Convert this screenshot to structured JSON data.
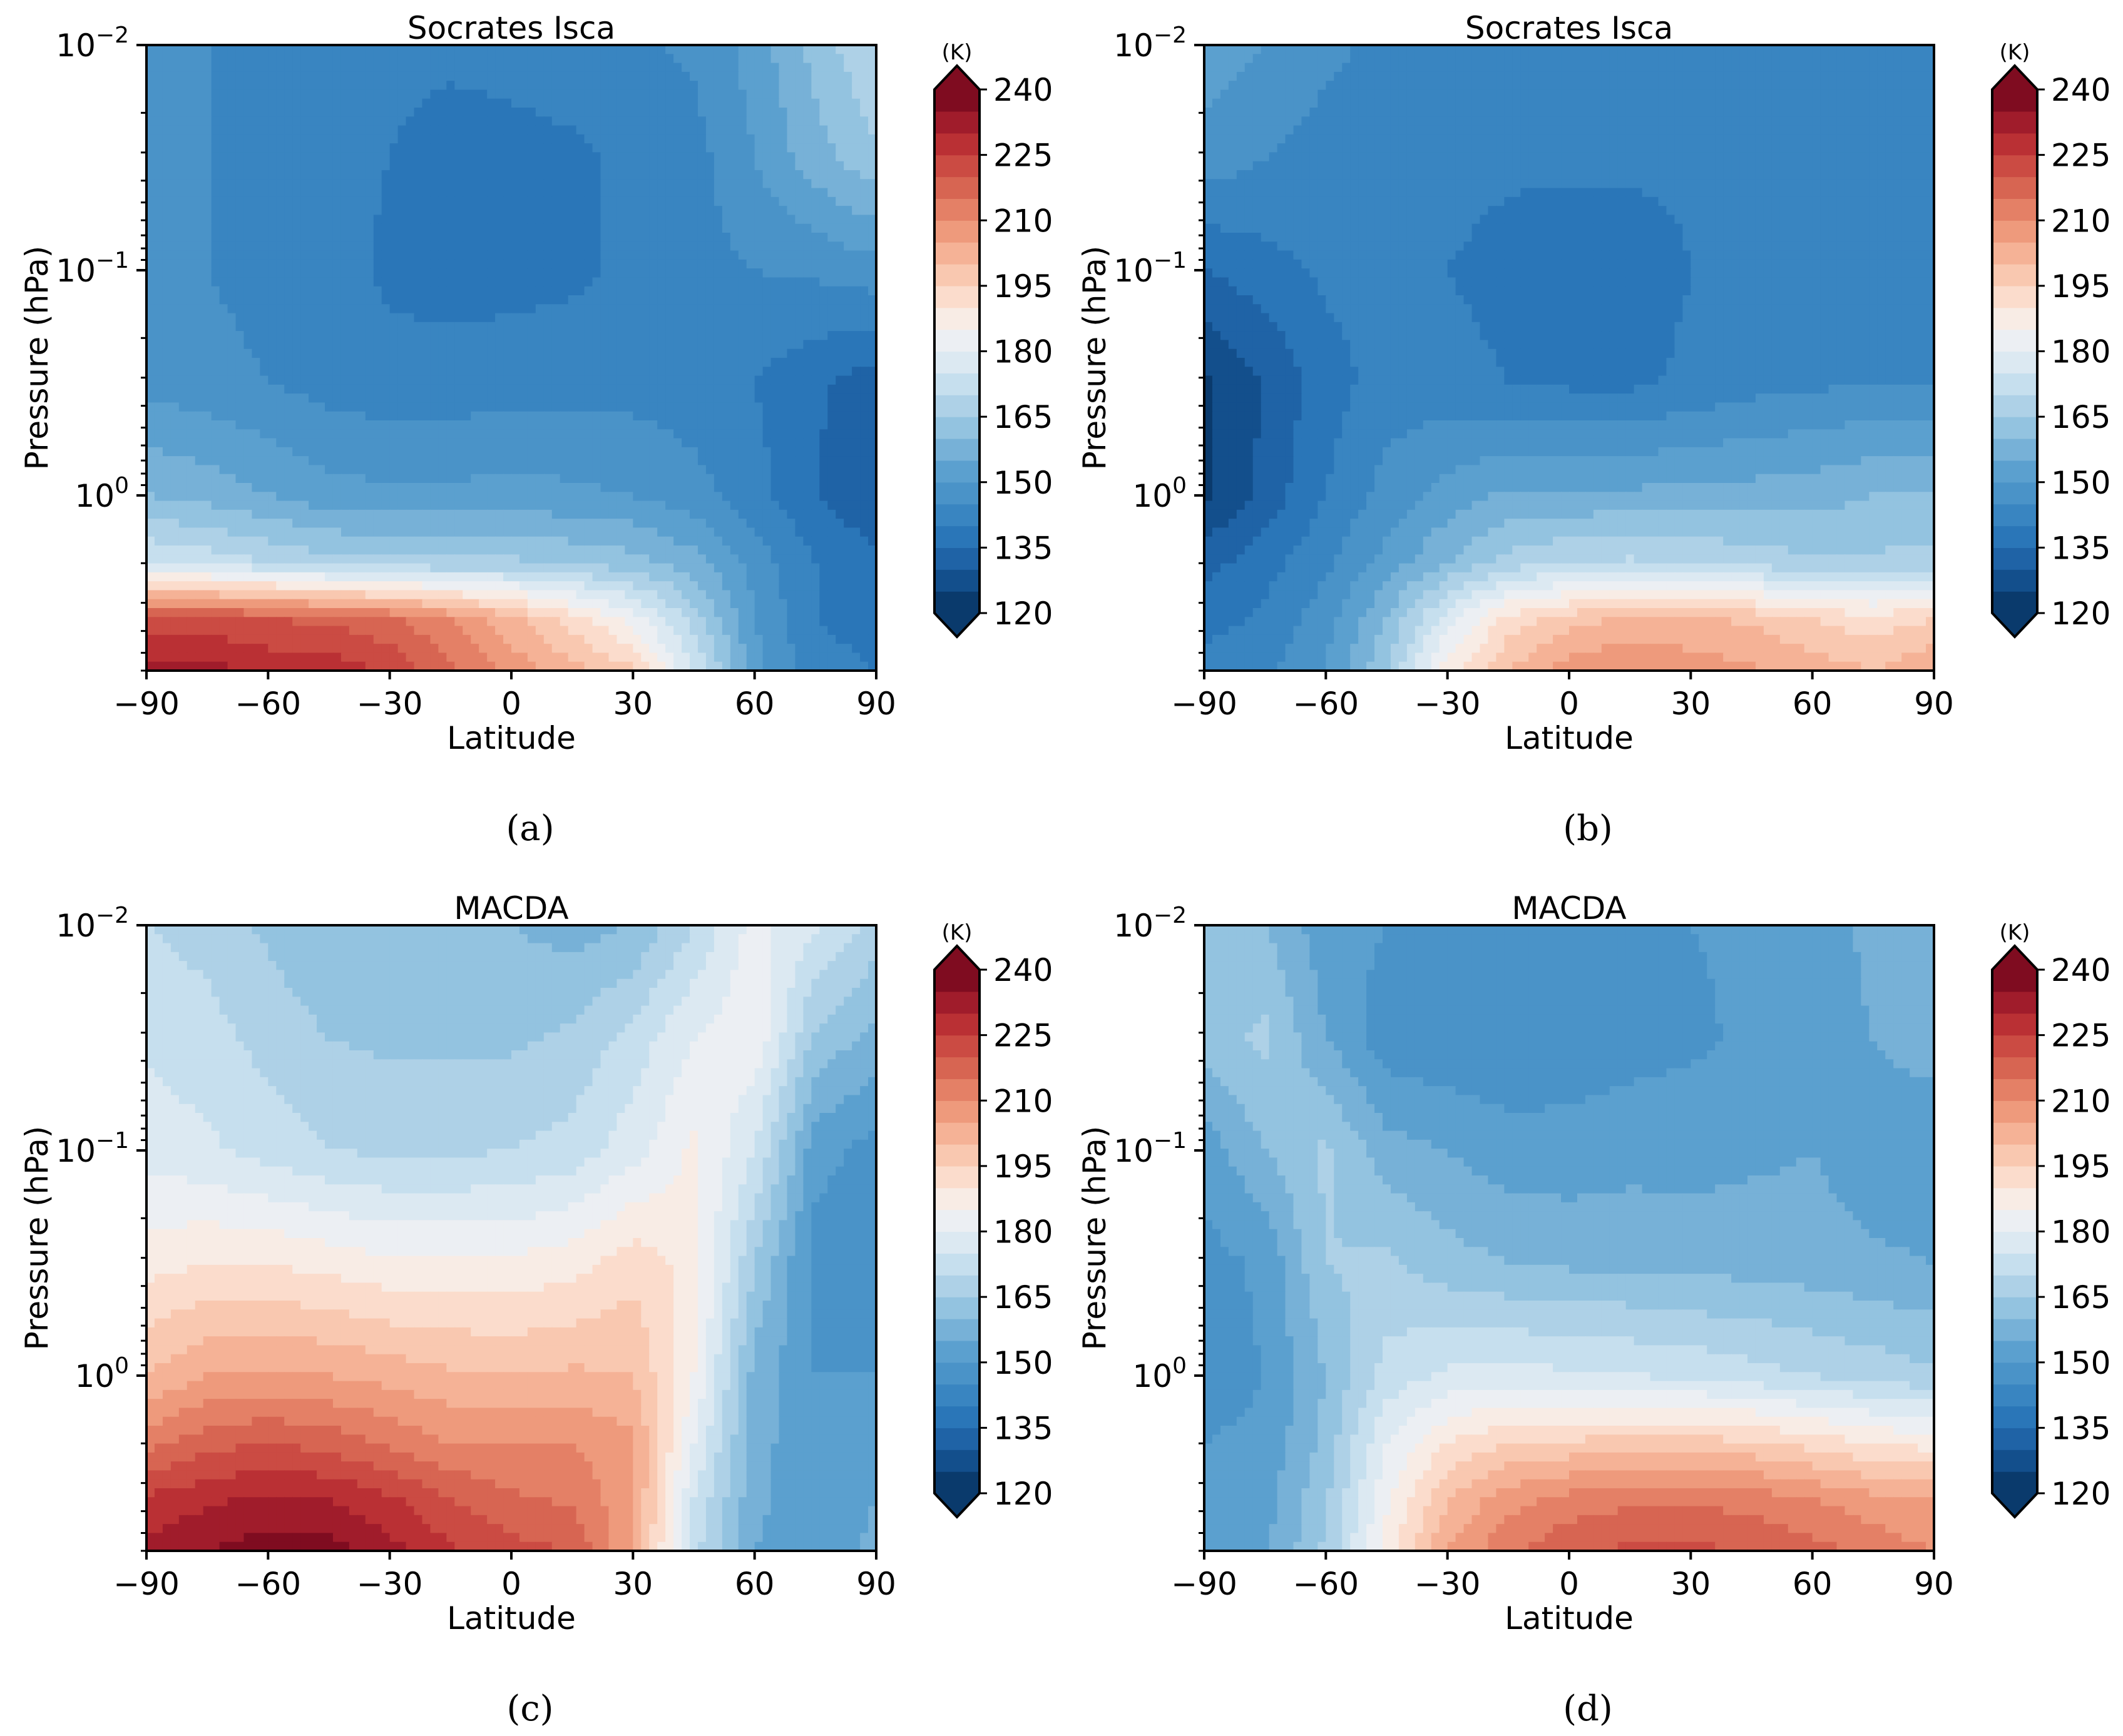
{
  "figure": {
    "colorbar": {
      "unit": "(K)",
      "ticks": [
        "240",
        "225",
        "210",
        "195",
        "180",
        "165",
        "150",
        "135",
        "120"
      ],
      "min": 120,
      "max": 240,
      "step": 5,
      "colors_low_to_high": [
        "#0a3a6c",
        "#134f8c",
        "#1f63a6",
        "#2a76b8",
        "#3985c1",
        "#4a93c8",
        "#5ba0cf",
        "#77b1d7",
        "#93c3e0",
        "#aed1e7",
        "#c6dfee",
        "#dce9f2",
        "#eceff3",
        "#f8ece5",
        "#fbdccc",
        "#f9c8b0",
        "#f5b296",
        "#ee9a7c",
        "#e48066",
        "#d76552",
        "#cb4b43",
        "#ba3034",
        "#a01c2b",
        "#7f0c20"
      ]
    },
    "panels": [
      {
        "id": "a",
        "title": "Socrates Isca",
        "caption": "(a)"
      },
      {
        "id": "b",
        "title": "Socrates Isca",
        "caption": "(b)"
      },
      {
        "id": "c",
        "title": "MACDA",
        "caption": "(c)"
      },
      {
        "id": "d",
        "title": "MACDA",
        "caption": "(d)"
      }
    ]
  },
  "chart_data": [
    {
      "type": "heatmap",
      "title": "Socrates Isca",
      "caption": "(a)",
      "xlabel": "Latitude",
      "ylabel": "Pressure (hPa)",
      "x_ticks": [
        "-90",
        "-60",
        "-30",
        "0",
        "30",
        "60",
        "90"
      ],
      "y_ticks": [
        "10−2",
        "10−1",
        "10⁰"
      ],
      "xlim": [
        -90,
        90
      ],
      "ylim_hPa": [
        6.0,
        0.01
      ],
      "y_scale": "log",
      "units": "K",
      "lat": [
        -90,
        -75,
        -60,
        -45,
        -30,
        -15,
        0,
        15,
        30,
        45,
        60,
        75,
        90
      ],
      "log10_p": [
        -2.0,
        -1.5,
        -1.0,
        -0.5,
        0.0,
        0.3,
        0.55,
        0.78
      ],
      "values": [
        [
          146,
          145,
          143,
          142,
          141,
          141,
          142,
          143,
          144,
          146,
          152,
          162,
          170
        ],
        [
          146,
          145,
          143,
          142,
          140,
          138,
          138,
          139,
          141,
          143,
          150,
          158,
          164
        ],
        [
          146,
          145,
          143,
          142,
          139,
          138,
          138,
          139,
          141,
          143,
          145,
          146,
          148
        ],
        [
          148,
          147,
          145,
          143,
          142,
          142,
          143,
          143,
          143,
          142,
          140,
          136,
          132
        ],
        [
          160,
          158,
          155,
          152,
          151,
          151,
          152,
          151,
          150,
          147,
          142,
          135,
          130
        ],
        [
          175,
          173,
          170,
          167,
          166,
          166,
          166,
          164,
          162,
          157,
          148,
          140,
          137
        ],
        [
          222,
          222,
          220,
          219,
          216,
          210,
          202,
          193,
          183,
          168,
          150,
          140,
          138
        ],
        [
          232,
          232,
          229,
          228,
          224,
          216,
          208,
          202,
          196,
          175,
          152,
          142,
          140
        ]
      ]
    },
    {
      "type": "heatmap",
      "title": "Socrates Isca",
      "caption": "(b)",
      "xlabel": "Latitude",
      "ylabel": "Pressure (hPa)",
      "x_ticks": [
        "-90",
        "-60",
        "-30",
        "0",
        "30",
        "60",
        "90"
      ],
      "y_ticks": [
        "10−2",
        "10−1",
        "10⁰"
      ],
      "xlim": [
        -90,
        90
      ],
      "ylim_hPa": [
        6.0,
        0.01
      ],
      "y_scale": "log",
      "units": "K",
      "lat": [
        -90,
        -75,
        -60,
        -45,
        -30,
        -15,
        0,
        15,
        30,
        45,
        60,
        75,
        90
      ],
      "log10_p": [
        -2.0,
        -1.5,
        -1.0,
        -0.5,
        0.0,
        0.3,
        0.55,
        0.78
      ],
      "values": [
        [
          153,
          150,
          146,
          144,
          143,
          142,
          142,
          142,
          142,
          142,
          142,
          142,
          142
        ],
        [
          148,
          145,
          143,
          142,
          142,
          141,
          141,
          141,
          141,
          141,
          142,
          142,
          142
        ],
        [
          135,
          138,
          141,
          141,
          140,
          138,
          137,
          137,
          140,
          141,
          142,
          142,
          142
        ],
        [
          124,
          130,
          138,
          142,
          142,
          140,
          139,
          139,
          141,
          143,
          144,
          145,
          145
        ],
        [
          124,
          132,
          140,
          147,
          152,
          156,
          156,
          156,
          157,
          157,
          158,
          160,
          160
        ],
        [
          133,
          138,
          144,
          152,
          160,
          167,
          170,
          171,
          170,
          168,
          166,
          166,
          167
        ],
        [
          138,
          141,
          148,
          160,
          178,
          192,
          198,
          201,
          201,
          199,
          195,
          192,
          195
        ],
        [
          142,
          144,
          150,
          165,
          188,
          200,
          208,
          210,
          208,
          206,
          203,
          200,
          205
        ]
      ]
    },
    {
      "type": "heatmap",
      "title": "MACDA",
      "caption": "(c)",
      "xlabel": "Latitude",
      "ylabel": "Pressure (hPa)",
      "x_ticks": [
        "-90",
        "-60",
        "-30",
        "0",
        "30",
        "60",
        "90"
      ],
      "y_ticks": [
        "10−2",
        "10−1",
        "10⁰"
      ],
      "xlim": [
        -90,
        90
      ],
      "ylim_hPa": [
        6.0,
        0.01
      ],
      "y_scale": "log",
      "units": "K",
      "lat": [
        -90,
        -75,
        -60,
        -45,
        -30,
        -15,
        0,
        15,
        30,
        45,
        60,
        75,
        90
      ],
      "log10_p": [
        -2.0,
        -1.5,
        -1.0,
        -0.5,
        0.0,
        0.3,
        0.55,
        0.78
      ],
      "values": [
        [
          170,
          168,
          164,
          160,
          160,
          162,
          160,
          158,
          160,
          170,
          182,
          176,
          168
        ],
        [
          174,
          172,
          168,
          165,
          164,
          164,
          164,
          166,
          172,
          180,
          184,
          164,
          158
        ],
        [
          178,
          176,
          173,
          170,
          169,
          169,
          170,
          172,
          178,
          186,
          175,
          152,
          148
        ],
        [
          188,
          190,
          190,
          188,
          186,
          186,
          186,
          188,
          193,
          188,
          165,
          148,
          145
        ],
        [
          200,
          205,
          206,
          205,
          203,
          201,
          200,
          201,
          200,
          185,
          158,
          150,
          150
        ],
        [
          213,
          218,
          220,
          218,
          214,
          210,
          210,
          210,
          206,
          180,
          157,
          151,
          152
        ],
        [
          226,
          229,
          231,
          230,
          226,
          220,
          216,
          214,
          206,
          175,
          156,
          152,
          155
        ],
        [
          232,
          235,
          238,
          237,
          232,
          226,
          222,
          220,
          205,
          172,
          155,
          153,
          156
        ]
      ]
    },
    {
      "type": "heatmap",
      "title": "MACDA",
      "caption": "(d)",
      "xlabel": "Latitude",
      "ylabel": "Pressure (hPa)",
      "x_ticks": [
        "-90",
        "-60",
        "-30",
        "0",
        "30",
        "60",
        "90"
      ],
      "y_ticks": [
        "10−2",
        "10−1",
        "10⁰"
      ],
      "xlim": [
        -90,
        90
      ],
      "ylim_hPa": [
        6.0,
        0.01
      ],
      "y_scale": "log",
      "units": "K",
      "lat": [
        -90,
        -75,
        -60,
        -45,
        -30,
        -15,
        0,
        15,
        30,
        45,
        60,
        75,
        90
      ],
      "log10_p": [
        -2.0,
        -1.5,
        -1.0,
        -0.5,
        0.0,
        0.3,
        0.55,
        0.78
      ],
      "values": [
        [
          164,
          160,
          152,
          150,
          148,
          148,
          150,
          150,
          150,
          151,
          153,
          156,
          160
        ],
        [
          163,
          166,
          155,
          147,
          146,
          146,
          147,
          148,
          149,
          151,
          153,
          155,
          158
        ],
        [
          152,
          160,
          166,
          157,
          155,
          152,
          152,
          153,
          153,
          154,
          155,
          152,
          150
        ],
        [
          148,
          151,
          165,
          166,
          162,
          160,
          159,
          159,
          158,
          158,
          157,
          156,
          155
        ],
        [
          148,
          150,
          160,
          172,
          176,
          177,
          176,
          175,
          174,
          172,
          170,
          168,
          166
        ],
        [
          150,
          151,
          162,
          180,
          190,
          195,
          196,
          197,
          197,
          196,
          193,
          190,
          188
        ],
        [
          151,
          153,
          164,
          184,
          200,
          208,
          212,
          214,
          214,
          213,
          210,
          207,
          205
        ],
        [
          152,
          154,
          166,
          187,
          205,
          214,
          219,
          221,
          221,
          220,
          217,
          213,
          210
        ]
      ]
    }
  ]
}
